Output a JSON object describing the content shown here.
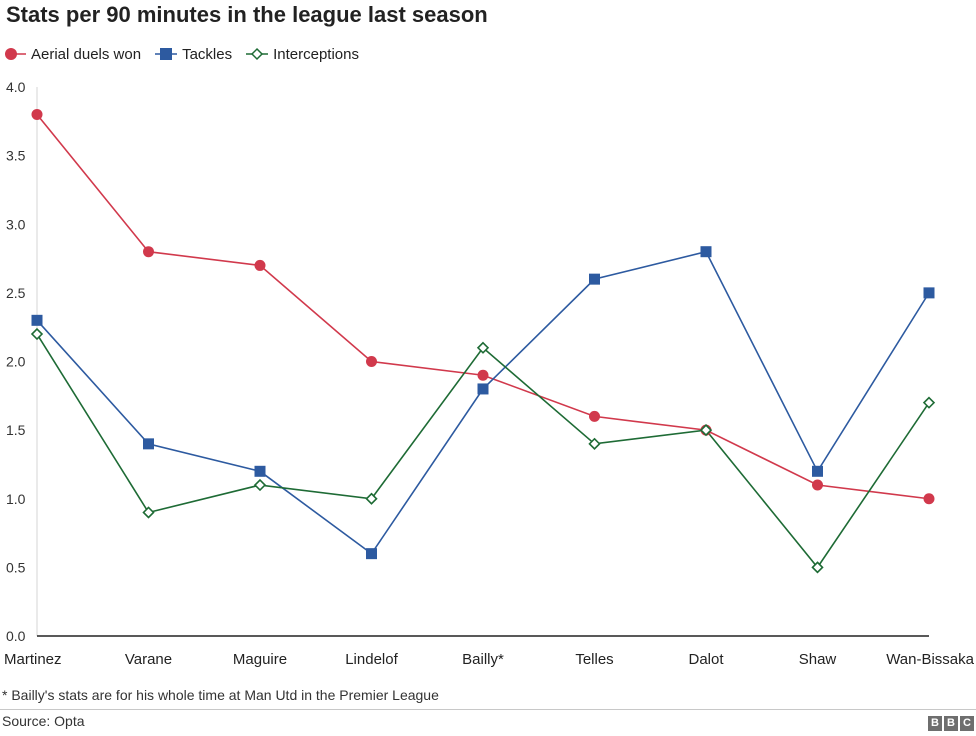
{
  "title": "Stats per 90 minutes in the league last season",
  "note": "* Bailly's stats are for his whole time at Man Utd in the Premier League",
  "source": "Source: Opta",
  "logo": {
    "letters": [
      "B",
      "B",
      "C"
    ],
    "icon": "bbc-logo"
  },
  "colors": {
    "aerial": "#d1394c",
    "tackles": "#2d5aa0",
    "interceptions": "#1e6b35"
  },
  "chart_data": {
    "type": "line",
    "title": "Stats per 90 minutes in the league last season",
    "categories": [
      "Martinez",
      "Varane",
      "Maguire",
      "Lindelof",
      "Bailly*",
      "Telles",
      "Dalot",
      "Shaw",
      "Wan-Bissaka"
    ],
    "ylim": [
      0,
      4
    ],
    "yticks": [
      "0.0",
      "0.5",
      "1.0",
      "1.5",
      "2.0",
      "2.5",
      "3.0",
      "3.5",
      "4.0"
    ],
    "grid": false,
    "legend_position": "top-left",
    "series": [
      {
        "name": "Aerial duels won",
        "marker": "circle",
        "color": "#d1394c",
        "values": [
          3.8,
          2.8,
          2.7,
          2.0,
          1.9,
          1.6,
          1.5,
          1.1,
          1.0
        ]
      },
      {
        "name": "Tackles",
        "marker": "square",
        "color": "#2d5aa0",
        "values": [
          2.3,
          1.4,
          1.2,
          0.6,
          1.8,
          2.6,
          2.8,
          1.2,
          2.5
        ]
      },
      {
        "name": "Interceptions",
        "marker": "diamond-open",
        "color": "#1e6b35",
        "values": [
          2.2,
          0.9,
          1.1,
          1.0,
          2.1,
          1.4,
          1.5,
          0.5,
          1.7
        ]
      }
    ]
  }
}
